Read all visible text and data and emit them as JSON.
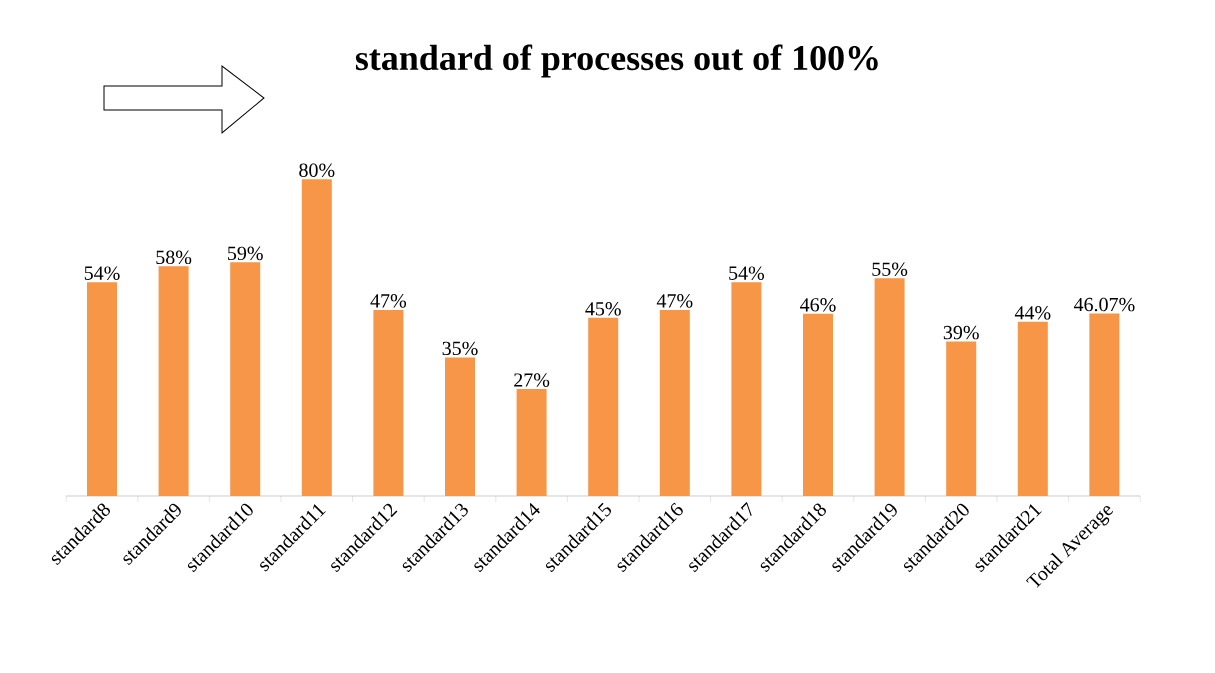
{
  "chart_data": {
    "type": "bar",
    "title": "standard of processes out of 100%",
    "categories": [
      "standard8",
      "standard9",
      "standard10",
      "standard11",
      "standard12",
      "standard13",
      "standard14",
      "standard15",
      "standard16",
      "standard17",
      "standard18",
      "standard19",
      "standard20",
      "standard21",
      "Total Average"
    ],
    "values": [
      54,
      58,
      59,
      80,
      47,
      35,
      27,
      45,
      47,
      54,
      46,
      55,
      39,
      44,
      46.07
    ],
    "value_labels": [
      "54%",
      "58%",
      "59%",
      "80%",
      "47%",
      "35%",
      "27%",
      "45%",
      "47%",
      "54%",
      "46%",
      "55%",
      "39%",
      "44%",
      "46.07%"
    ],
    "color": "#f79646",
    "tick_labels": "x"
  }
}
